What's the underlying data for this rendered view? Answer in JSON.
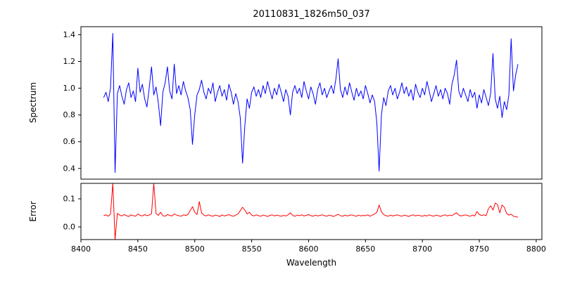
{
  "chart_data": {
    "type": "line",
    "title": "20110831_1826m50_037",
    "xlabel": "Wavelength",
    "xlim": [
      8400,
      8805
    ],
    "xticks": [
      8400,
      8450,
      8500,
      8550,
      8600,
      8650,
      8700,
      8750,
      8800
    ],
    "xtick_labels": [
      "8400",
      "8450",
      "8500",
      "8550",
      "8600",
      "8650",
      "8700",
      "8750",
      "8800"
    ],
    "x_start": 8420,
    "x_step": 2,
    "grid": false,
    "legend": "none",
    "panels": [
      {
        "name": "spectrum",
        "ylabel": "Spectrum",
        "color": "#0000ff",
        "ylim": [
          0.32,
          1.46
        ],
        "yticks": [
          0.4,
          0.6,
          0.8,
          1.0,
          1.2,
          1.4
        ],
        "ytick_labels": [
          "0.4",
          "0.6",
          "0.8",
          "1.0",
          "1.2",
          "1.4"
        ],
        "values": [
          0.93,
          0.97,
          0.9,
          1.0,
          1.41,
          0.37,
          0.96,
          1.02,
          0.94,
          0.88,
          0.99,
          1.04,
          0.93,
          0.98,
          0.9,
          1.15,
          0.97,
          1.03,
          0.92,
          0.86,
          1.0,
          1.16,
          0.95,
          1.01,
          0.89,
          0.72,
          0.97,
          1.04,
          1.16,
          0.98,
          0.92,
          1.18,
          0.96,
          1.02,
          0.95,
          1.05,
          0.98,
          0.93,
          0.84,
          0.58,
          0.8,
          0.95,
          0.99,
          1.06,
          0.97,
          0.92,
          1.0,
          0.96,
          1.04,
          0.9,
          0.97,
          1.02,
          0.94,
          0.99,
          0.91,
          1.03,
          0.97,
          0.88,
          0.96,
          0.9,
          0.78,
          0.44,
          0.72,
          0.92,
          0.85,
          0.97,
          1.01,
          0.94,
          0.99,
          0.93,
          1.02,
          0.96,
          1.05,
          0.98,
          0.92,
          1.0,
          0.95,
          1.03,
          0.97,
          0.9,
          0.99,
          0.94,
          0.8,
          0.97,
          1.02,
          0.96,
          1.0,
          0.93,
          1.05,
          0.98,
          0.92,
          1.01,
          0.96,
          0.88,
          0.99,
          1.04,
          0.95,
          1.0,
          0.93,
          0.98,
          1.02,
          0.96,
          1.07,
          1.22,
          0.99,
          0.93,
          1.01,
          0.95,
          1.04,
          0.97,
          0.91,
          1.0,
          0.94,
          0.98,
          0.92,
          1.02,
          0.96,
          0.89,
          0.95,
          0.9,
          0.74,
          0.38,
          0.8,
          0.93,
          0.87,
          0.98,
          1.02,
          0.95,
          1.0,
          0.92,
          0.97,
          1.04,
          0.96,
          1.01,
          0.94,
          0.99,
          0.91,
          1.03,
          0.97,
          0.93,
          1.0,
          0.95,
          1.05,
          0.98,
          0.9,
          0.96,
          1.02,
          0.94,
          0.99,
          0.92,
          1.0,
          0.96,
          0.88,
          1.03,
          1.1,
          1.21,
          0.98,
          0.93,
          1.0,
          0.95,
          0.9,
          0.99,
          0.93,
          0.97,
          0.85,
          0.95,
          0.89,
          0.99,
          0.93,
          0.87,
          0.96,
          1.26,
          0.92,
          0.85,
          0.94,
          0.78,
          0.9,
          0.84,
          0.95,
          1.37,
          0.98,
          1.1,
          1.18
        ]
      },
      {
        "name": "error",
        "ylabel": "Error",
        "color": "#ff0000",
        "ylim": [
          -0.045,
          0.155
        ],
        "yticks": [
          0.0,
          0.1
        ],
        "ytick_labels": [
          "0.0",
          "0.1"
        ],
        "values": [
          0.04,
          0.043,
          0.038,
          0.045,
          0.16,
          -0.12,
          0.048,
          0.042,
          0.039,
          0.044,
          0.04,
          0.037,
          0.043,
          0.04,
          0.038,
          0.046,
          0.041,
          0.039,
          0.044,
          0.04,
          0.042,
          0.047,
          0.16,
          0.048,
          0.041,
          0.052,
          0.04,
          0.038,
          0.044,
          0.041,
          0.039,
          0.046,
          0.042,
          0.04,
          0.038,
          0.043,
          0.041,
          0.044,
          0.058,
          0.072,
          0.052,
          0.044,
          0.09,
          0.05,
          0.042,
          0.039,
          0.043,
          0.04,
          0.038,
          0.042,
          0.04,
          0.037,
          0.043,
          0.039,
          0.041,
          0.044,
          0.04,
          0.038,
          0.042,
          0.046,
          0.058,
          0.07,
          0.06,
          0.046,
          0.052,
          0.042,
          0.039,
          0.043,
          0.04,
          0.038,
          0.042,
          0.04,
          0.037,
          0.041,
          0.043,
          0.039,
          0.042,
          0.04,
          0.038,
          0.041,
          0.039,
          0.043,
          0.05,
          0.041,
          0.038,
          0.042,
          0.04,
          0.043,
          0.039,
          0.041,
          0.044,
          0.04,
          0.038,
          0.042,
          0.039,
          0.041,
          0.043,
          0.04,
          0.038,
          0.042,
          0.04,
          0.037,
          0.041,
          0.045,
          0.04,
          0.038,
          0.042,
          0.039,
          0.041,
          0.043,
          0.04,
          0.038,
          0.042,
          0.039,
          0.041,
          0.04,
          0.043,
          0.038,
          0.042,
          0.046,
          0.052,
          0.078,
          0.054,
          0.044,
          0.04,
          0.038,
          0.042,
          0.039,
          0.041,
          0.043,
          0.04,
          0.038,
          0.042,
          0.04,
          0.037,
          0.041,
          0.043,
          0.039,
          0.042,
          0.04,
          0.038,
          0.041,
          0.039,
          0.043,
          0.04,
          0.038,
          0.042,
          0.04,
          0.037,
          0.041,
          0.043,
          0.039,
          0.042,
          0.04,
          0.046,
          0.05,
          0.042,
          0.039,
          0.041,
          0.043,
          0.04,
          0.038,
          0.042,
          0.039,
          0.055,
          0.044,
          0.041,
          0.043,
          0.04,
          0.065,
          0.075,
          0.06,
          0.085,
          0.08,
          0.05,
          0.078,
          0.07,
          0.048,
          0.042,
          0.045,
          0.038,
          0.036,
          0.035
        ]
      }
    ]
  }
}
